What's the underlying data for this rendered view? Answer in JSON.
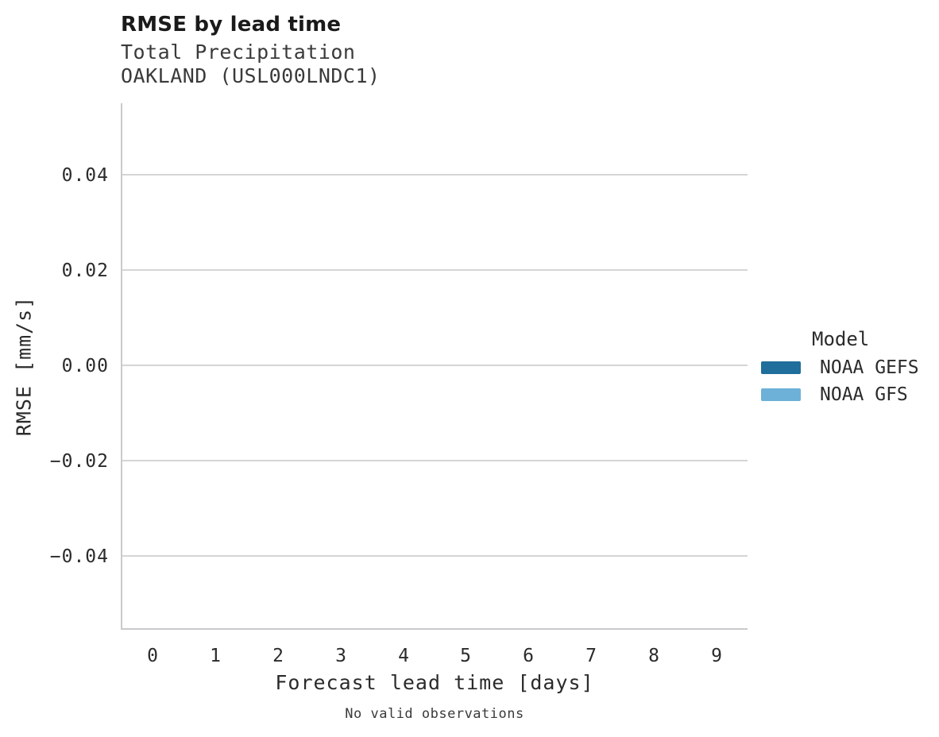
{
  "chart_data": {
    "type": "line",
    "title": "RMSE by lead time",
    "subtitle": [
      "Total Precipitation",
      "OAKLAND (USL000LNDC1)"
    ],
    "xlabel": "Forecast lead time [days]",
    "ylabel": "RMSE [mm/s]",
    "x_ticks": [
      "0",
      "1",
      "2",
      "3",
      "4",
      "5",
      "6",
      "7",
      "8",
      "9"
    ],
    "y_ticks": [
      "0.04",
      "0.02",
      "0.00",
      "−0.02",
      "−0.04"
    ],
    "y_tick_values": [
      0.04,
      0.02,
      0.0,
      -0.02,
      -0.04
    ],
    "xlim": [
      -0.5,
      9.5
    ],
    "ylim": [
      -0.055,
      0.055
    ],
    "grid": "horizontal-only",
    "legend_position": "right-center",
    "legend_title": "Model",
    "series": [
      {
        "name": "NOAA GEFS",
        "color": "#1f6e9c",
        "x": [],
        "y": []
      },
      {
        "name": "NOAA GFS",
        "color": "#6db1d8",
        "x": [],
        "y": []
      }
    ],
    "annotation": "No valid observations",
    "grid_color": "#d5d5d6",
    "spine_color": "#c9cacb",
    "background_color": "#ffffff"
  }
}
